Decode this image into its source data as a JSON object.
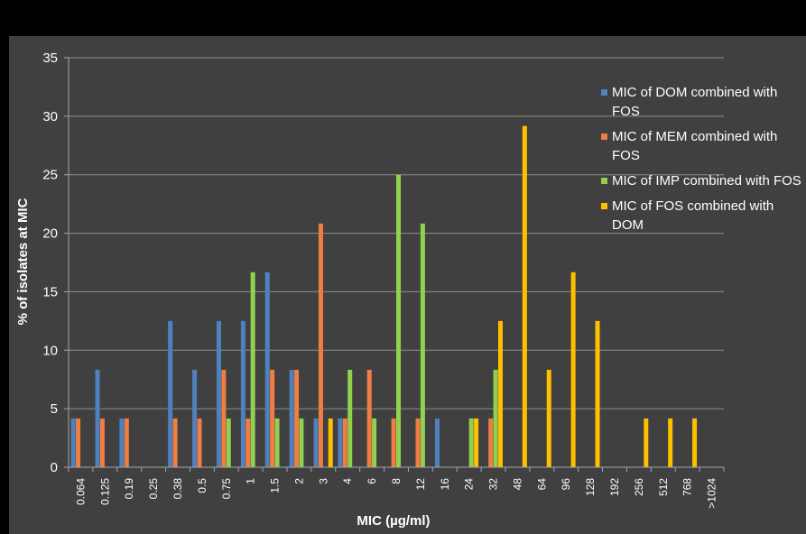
{
  "chart_data": {
    "type": "bar",
    "title": "",
    "xlabel": "MIC (µg/ml)",
    "ylabel": "% of isolates at MIC",
    "ylim": [
      0,
      35
    ],
    "yticks": [
      "0",
      "5",
      "10",
      "15",
      "20",
      "25",
      "30",
      "35"
    ],
    "grid": true,
    "legend_position": "right",
    "categories": [
      "0.064",
      "0.125",
      "0.19",
      "0.25",
      "0.38",
      "0.5",
      "0.75",
      "1",
      "1.5",
      "2",
      "3",
      "4",
      "6",
      "8",
      "12",
      "16",
      "24",
      "32",
      "48",
      "64",
      "96",
      "128",
      "192",
      "256",
      "512",
      "768",
      ">1024"
    ],
    "series": [
      {
        "name": "MIC of DOM combined with FOS",
        "color": "#4F81BD",
        "values": [
          4.17,
          8.33,
          4.17,
          0,
          12.5,
          8.33,
          12.5,
          12.5,
          16.67,
          8.33,
          4.17,
          4.17,
          0,
          0,
          0,
          4.17,
          0,
          0,
          0,
          0,
          0,
          0,
          0,
          0,
          0,
          0,
          0
        ]
      },
      {
        "name": "MIC of MEM combined with FOS",
        "color": "#F07D41",
        "values": [
          4.17,
          4.17,
          4.17,
          0,
          4.17,
          4.17,
          8.33,
          4.17,
          8.33,
          8.33,
          20.83,
          4.17,
          8.33,
          4.17,
          4.17,
          0,
          0,
          4.17,
          0,
          0,
          0,
          0,
          0,
          0,
          0,
          0,
          0
        ]
      },
      {
        "name": "MIC of IMP combined with FOS",
        "color": "#92D050",
        "values": [
          0,
          0,
          0,
          0,
          0,
          0,
          4.17,
          16.67,
          4.17,
          4.17,
          0,
          8.33,
          4.17,
          25.0,
          20.83,
          0,
          4.17,
          8.33,
          0,
          0,
          0,
          0,
          0,
          0,
          0,
          0,
          0
        ]
      },
      {
        "name": "MIC of FOS combined with DOM",
        "color": "#FFC000",
        "values": [
          0,
          0,
          0,
          0,
          0,
          0,
          0,
          0,
          0,
          0,
          4.17,
          0,
          0,
          0,
          0,
          0,
          4.17,
          12.5,
          29.17,
          8.33,
          16.67,
          12.5,
          0,
          4.17,
          4.17,
          4.17,
          0
        ]
      }
    ]
  }
}
